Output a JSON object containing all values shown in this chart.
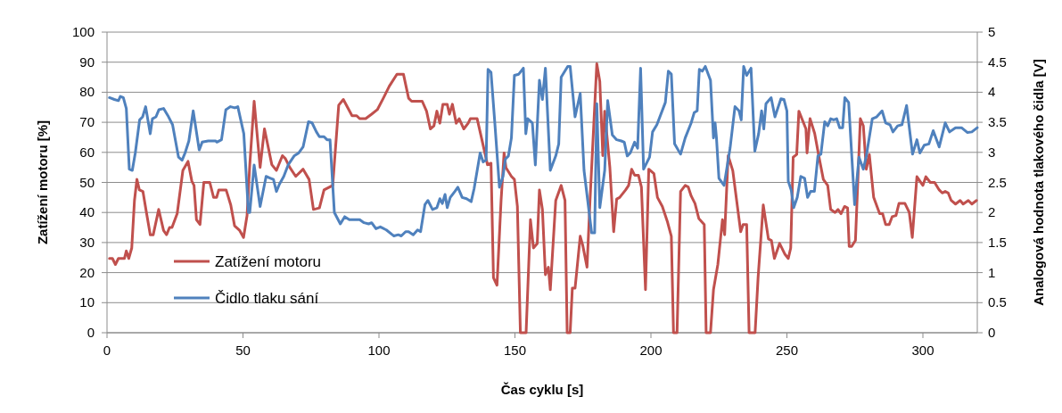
{
  "chart_data": {
    "type": "line",
    "xlabel": "Čas cyklu [s]",
    "ylabel": "Zatížení motoru [%]",
    "y2label": "Analogová hodnota tlakového čidla [V]",
    "xlim": [
      0,
      320
    ],
    "xticks": [
      0,
      50,
      100,
      150,
      200,
      250,
      300
    ],
    "ylim": [
      0,
      100
    ],
    "yticks": [
      0,
      10,
      20,
      30,
      40,
      50,
      60,
      70,
      80,
      90,
      100
    ],
    "y2lim": [
      0,
      5
    ],
    "y2ticks": [
      0,
      0.5,
      1,
      1.5,
      2,
      2.5,
      3,
      3.5,
      4,
      4.5,
      5
    ],
    "grid": "y",
    "legend": "bottom left",
    "line_style": "solid",
    "series": [
      {
        "name": "Zatížení motoru",
        "color": "#c0504d",
        "x": [
          0.9,
          2,
          3.1,
          4.2,
          6.4,
          7.1,
          8,
          9.1,
          10.1,
          11,
          11.9,
          13.2,
          14.5,
          15.9,
          17,
          19,
          20.8,
          21.9,
          23,
          23.9,
          25.8,
          27.9,
          29.8,
          31.2,
          32,
          32.9,
          34.2,
          35.6,
          37.8,
          39.2,
          40.3,
          41.1,
          43.8,
          45.5,
          46.9,
          48.8,
          50.2,
          51.5,
          52.5,
          54.1,
          56.3,
          57.9,
          60.6,
          62.3,
          64.5,
          65.6,
          67.2,
          69.4,
          72.1,
          74.3,
          75.9,
          78.1,
          79.8,
          83,
          85.2,
          86.9,
          90.1,
          91.8,
          92.9,
          95.1,
          97.3,
          99.4,
          101.6,
          103.8,
          106.6,
          109,
          110.9,
          112,
          115.9,
          117.5,
          118.9,
          120.2,
          121.3,
          122.4,
          123.5,
          125.1,
          125.9,
          127,
          128.4,
          129.5,
          131.2,
          132.8,
          133.6,
          136.1,
          137.7,
          139.9,
          141.2,
          142.1,
          143.4,
          144.9,
          146,
          146.7,
          148.7,
          149.8,
          150.9,
          152,
          154.1,
          155.7,
          156.8,
          158.2,
          159,
          160.1,
          161.2,
          162.3,
          163,
          165,
          167,
          168.4,
          169.2,
          170.3,
          171.1,
          172.1,
          174,
          174.9,
          176.5,
          177.6,
          180.1,
          181.2,
          182.3,
          183,
          184.9,
          186.3,
          187.4,
          188.5,
          190.7,
          191.8,
          192.9,
          194,
          195.4,
          196.5,
          198,
          199.2,
          201.1,
          202.4,
          204.2,
          206,
          207.5,
          208.3,
          209.6,
          210.9,
          212.6,
          213.7,
          214.8,
          216.2,
          217.6,
          219.6,
          220.3,
          221.9,
          223,
          224.6,
          226.3,
          227.1,
          228.4,
          230.1,
          233,
          233.9,
          235.2,
          236.1,
          238.3,
          239.4,
          241.3,
          243.2,
          244.3,
          245.4,
          247.3,
          249.2,
          250.5,
          251.4,
          252.3,
          253.6,
          254.4,
          257,
          257.4,
          258.5,
          260.2,
          261.7,
          263.4,
          265,
          266.1,
          267.7,
          268.8,
          269.9,
          271.2,
          272.3,
          272.9,
          273.8,
          275.2,
          277,
          278.1,
          279.2,
          280.3,
          281.9,
          284.1,
          285.2,
          286.3,
          287.6,
          288.7,
          290.1,
          291.2,
          293.4,
          295,
          296.1,
          297.8,
          300,
          301.1,
          302.7,
          304.3,
          306,
          307.1,
          308.2,
          309.3,
          310.4,
          312,
          313.7,
          314.8,
          316.7,
          318,
          319.7
        ],
        "values": [
          24.7,
          24.7,
          22.7,
          24.7,
          24.7,
          27.2,
          24.7,
          28.2,
          44,
          51,
          47.5,
          47,
          40,
          32.6,
          32.6,
          41,
          34,
          32.6,
          35,
          35,
          39.6,
          54,
          57,
          50.4,
          49,
          37.6,
          36,
          50,
          50,
          45,
          45,
          47.5,
          47.5,
          42.5,
          35.6,
          34,
          31.7,
          39,
          55.9,
          77,
          55,
          67.8,
          55.9,
          54,
          58.9,
          57.9,
          55,
          52,
          54.4,
          51,
          41,
          41.5,
          47.5,
          49,
          75.7,
          77.6,
          72.2,
          72.2,
          71.2,
          71.2,
          72.7,
          74.2,
          78,
          82,
          86,
          86,
          78,
          77,
          77,
          73.7,
          67.8,
          68.8,
          73.7,
          69.7,
          76,
          76,
          72.7,
          76,
          69.7,
          71.2,
          67.8,
          69.7,
          71.2,
          71.2,
          64.8,
          55.9,
          56.4,
          18.3,
          15.8,
          44,
          59.8,
          54.9,
          52,
          51,
          42,
          0,
          0,
          37.6,
          28.2,
          29.7,
          47.5,
          41,
          19.3,
          21.8,
          14.3,
          44,
          49,
          44,
          0,
          0,
          14.8,
          14.8,
          32.1,
          29.2,
          21.8,
          44,
          89.5,
          83.6,
          58.9,
          73.7,
          54.9,
          33.6,
          44.5,
          45,
          47.5,
          49,
          54.4,
          52.4,
          52.4,
          48.5,
          14.3,
          54.4,
          52.9,
          45,
          42,
          37.1,
          32.1,
          0,
          0,
          47,
          49,
          48.5,
          45.5,
          43,
          38,
          36,
          0,
          0,
          14.3,
          22.7,
          37.6,
          32.6,
          58.9,
          53.9,
          33.6,
          36,
          36,
          0,
          0,
          18.3,
          42.5,
          31.2,
          30.7,
          24.7,
          29.7,
          26.2,
          24.7,
          28.2,
          58.4,
          59.3,
          73.7,
          67.8,
          59.8,
          71.2,
          66.3,
          58.9,
          51,
          49,
          41,
          40,
          41,
          39.6,
          42,
          41.5,
          28.7,
          28.7,
          30.7,
          71.2,
          68.8,
          54.4,
          59.3,
          45,
          39.6,
          39.6,
          36,
          36,
          38.6,
          39,
          43,
          43,
          40,
          31.7,
          51.9,
          49,
          51.9,
          50,
          50,
          47.5,
          46.5,
          47,
          46.5,
          44,
          42.8,
          44,
          42.8,
          44,
          42.8,
          44
        ]
      },
      {
        "name": "Čidlo tlaku sání",
        "color": "#4f81bd",
        "axis": "y2",
        "x": [
          0.9,
          2.7,
          4.2,
          4.9,
          6,
          7.1,
          8.2,
          9.3,
          10.4,
          12,
          13.1,
          14.2,
          15.9,
          16.7,
          18,
          19.1,
          20.8,
          22.4,
          24.1,
          26.3,
          27.6,
          28.7,
          30.1,
          31.7,
          33.9,
          35,
          37.2,
          39.9,
          40.4,
          42.1,
          43.7,
          45.4,
          47,
          48.1,
          50.3,
          52,
          52.5,
          54.1,
          56.3,
          58.5,
          60.1,
          61.2,
          62.3,
          63.4,
          65,
          66.6,
          68.8,
          70.5,
          72.1,
          74.1,
          75.4,
          77,
          78.1,
          79.8,
          80.9,
          82,
          83.6,
          85.8,
          87.4,
          89.1,
          91.8,
          92.9,
          94.5,
          96.2,
          97.3,
          98.9,
          100.5,
          102.7,
          104.9,
          105.5,
          107.1,
          108.2,
          109.8,
          110.9,
          112.6,
          114.2,
          115.3,
          116.9,
          118,
          119.7,
          121.3,
          122.4,
          123.3,
          124.3,
          125.1,
          126.2,
          127.9,
          129,
          130.6,
          132.2,
          133.9,
          135,
          137.2,
          138.3,
          139.4,
          140.1,
          141.2,
          142.6,
          144.3,
          145.6,
          146.5,
          147.6,
          148.7,
          149.8,
          151.4,
          153.1,
          154,
          154.7,
          156.4,
          157.5,
          159,
          160.1,
          161.2,
          163,
          165,
          166.1,
          167,
          169.4,
          170.3,
          172.1,
          174,
          175.4,
          178.2,
          179.3,
          180.1,
          181.2,
          183,
          184.1,
          185.8,
          187.4,
          189.1,
          190.2,
          191.3,
          192.4,
          194,
          195.1,
          196.2,
          197.3,
          199.5,
          200.6,
          202.2,
          205.3,
          206.4,
          207.5,
          208.7,
          210.9,
          212.6,
          214.8,
          215.9,
          217,
          217.8,
          218.9,
          220,
          221.9,
          223,
          223.6,
          224.1,
          225,
          226.9,
          229.1,
          230.9,
          232.4,
          233.2,
          234.1,
          235.2,
          236.8,
          238.2,
          239.6,
          240.7,
          241.5,
          242.3,
          244.2,
          245.6,
          247.8,
          248.9,
          250,
          250.5,
          251.6,
          252.5,
          253.8,
          255.1,
          256.5,
          257.6,
          258.7,
          260.1,
          261.4,
          262.5,
          263.9,
          265,
          266.1,
          267.2,
          268.3,
          269.4,
          270.5,
          271.3,
          272.7,
          274.9,
          276.5,
          278.1,
          279.2,
          281.4,
          283,
          285,
          286.3,
          287.9,
          289,
          290.7,
          292.3,
          294,
          296.2,
          297.8,
          298.9,
          300.5,
          302.2,
          303.8,
          306,
          308.2,
          309.8,
          312,
          314.2,
          316.4,
          318,
          320
        ],
        "values": [
          3.91,
          3.88,
          3.86,
          3.93,
          3.91,
          3.73,
          2.72,
          2.7,
          2.99,
          3.54,
          3.59,
          3.76,
          3.31,
          3.56,
          3.59,
          3.71,
          3.73,
          3.61,
          3.46,
          2.92,
          2.87,
          2.99,
          3.19,
          3.69,
          3.04,
          3.17,
          3.19,
          3.19,
          3.17,
          3.21,
          3.71,
          3.76,
          3.74,
          3.76,
          3.31,
          2,
          2,
          2.79,
          2.1,
          2.6,
          2.57,
          2.55,
          2.35,
          2.47,
          2.6,
          2.79,
          2.94,
          2.99,
          3.09,
          3.51,
          3.49,
          3.34,
          3.26,
          3.26,
          3.21,
          3.21,
          2,
          1.81,
          1.93,
          1.88,
          1.88,
          1.88,
          1.83,
          1.81,
          1.83,
          1.73,
          1.76,
          1.71,
          1.63,
          1.61,
          1.63,
          1.61,
          1.68,
          1.68,
          1.63,
          1.71,
          1.68,
          2.13,
          2.2,
          2.05,
          2.08,
          2.23,
          2.15,
          2.3,
          2.08,
          2.25,
          2.35,
          2.42,
          2.25,
          2.23,
          2.18,
          2.4,
          2.99,
          2.84,
          2.87,
          4.38,
          4.33,
          3.49,
          2.42,
          2.6,
          2.89,
          2.94,
          3.24,
          4.28,
          4.3,
          4.4,
          3.31,
          3.56,
          3.49,
          2.79,
          4.2,
          3.88,
          4.4,
          2.7,
          2.94,
          3.14,
          4.25,
          4.43,
          4.43,
          3.59,
          3.98,
          2.7,
          1.66,
          1.66,
          3.81,
          2.08,
          2.7,
          3.86,
          3.29,
          3.21,
          3.19,
          3.17,
          2.94,
          2.99,
          3.17,
          3.07,
          4.4,
          2.72,
          2.92,
          3.34,
          3.46,
          3.83,
          4.35,
          4.3,
          3.14,
          2.97,
          3.24,
          3.49,
          3.66,
          3.69,
          4.38,
          4.35,
          4.43,
          4.2,
          3.24,
          3.49,
          3.24,
          2.57,
          2.45,
          3.07,
          3.76,
          3.69,
          3.54,
          4.43,
          4.28,
          4.4,
          3.02,
          3.31,
          3.69,
          3.39,
          3.81,
          3.91,
          3.59,
          3.89,
          3.88,
          3.69,
          2.52,
          2.37,
          2.08,
          2.25,
          2.6,
          2.57,
          2.25,
          2.35,
          2.35,
          2.94,
          2.97,
          3.51,
          3.44,
          3.56,
          3.54,
          3.56,
          3.41,
          3.41,
          3.91,
          3.83,
          2.13,
          2.92,
          2.72,
          2.94,
          3.56,
          3.59,
          3.69,
          3.49,
          3.46,
          3.34,
          3.44,
          3.46,
          3.78,
          2.97,
          3.21,
          2.99,
          3.12,
          3.14,
          3.36,
          3.09,
          3.49,
          3.34,
          3.41,
          3.41,
          3.33,
          3.34,
          3.41
        ]
      }
    ]
  }
}
